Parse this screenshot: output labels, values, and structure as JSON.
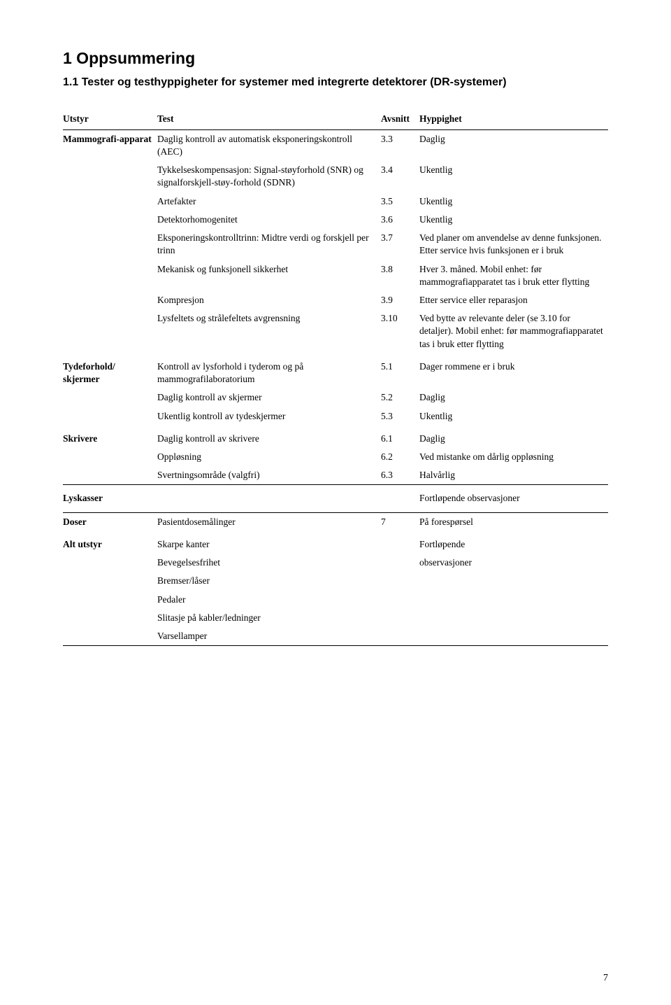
{
  "heading1": "1  Oppsummering",
  "heading2": "1.1  Tester og testhyppigheter for systemer med integrerte detektorer (DR-systemer)",
  "headers": {
    "utstyr": "Utstyr",
    "test": "Test",
    "avsnitt": "Avsnitt",
    "hyppighet": "Hyppighet"
  },
  "rows": [
    {
      "utstyr": "Mammografi-apparat",
      "test": "Daglig kontroll av automatisk eksponeringskontroll (AEC)",
      "avsnitt": "3.3",
      "hypp": "Daglig",
      "top": true,
      "newgroup": true
    },
    {
      "utstyr": "",
      "test": "Tykkelseskompensasjon: Signal-støyforhold (SNR) og signalforskjell-støy-forhold (SDNR)",
      "avsnitt": "3.4",
      "hypp": "Ukentlig"
    },
    {
      "utstyr": "",
      "test": "Artefakter",
      "avsnitt": "3.5",
      "hypp": "Ukentlig"
    },
    {
      "utstyr": "",
      "test": "Detektorhomogenitet",
      "avsnitt": "3.6",
      "hypp": "Ukentlig"
    },
    {
      "utstyr": "",
      "test": "Eksponeringskontrolltrinn: Midtre verdi og forskjell per trinn",
      "avsnitt": "3.7",
      "hypp": "Ved planer om anvendelse av denne funksjonen. Etter service hvis funksjonen er i bruk"
    },
    {
      "utstyr": "",
      "test": "Mekanisk og funksjonell sikkerhet",
      "avsnitt": "3.8",
      "hypp": "Hver 3. måned. Mobil enhet: før mammografiapparatet tas i bruk etter flytting"
    },
    {
      "utstyr": "",
      "test": "Kompresjon",
      "avsnitt": "3.9",
      "hypp": "Etter service eller reparasjon"
    },
    {
      "utstyr": "",
      "test": "Lysfeltets og strålefeltets avgrensning",
      "avsnitt": "3.10",
      "hypp": "Ved bytte av relevante deler (se 3.10 for detaljer). Mobil enhet: før mammografiapparatet tas i bruk etter flytting"
    },
    {
      "utstyr": "Tydeforhold/ skjermer",
      "test": "Kontroll av lysforhold i tyderom og på mammografilaboratorium",
      "avsnitt": "5.1",
      "hypp": "Dager rommene er i bruk",
      "newgroup": true
    },
    {
      "utstyr": "",
      "test": "Daglig kontroll av skjermer",
      "avsnitt": "5.2",
      "hypp": "Daglig"
    },
    {
      "utstyr": "",
      "test": "Ukentlig kontroll av tydeskjermer",
      "avsnitt": "5.3",
      "hypp": "Ukentlig"
    },
    {
      "utstyr": "Skrivere",
      "test": "Daglig kontroll av skrivere",
      "avsnitt": "6.1",
      "hypp": "Daglig",
      "newgroup": true
    },
    {
      "utstyr": "",
      "test": "Oppløsning",
      "avsnitt": "6.2",
      "hypp": "Ved mistanke om dårlig oppløsning"
    },
    {
      "utstyr": "",
      "test": "Svertningsområde (valgfri)",
      "avsnitt": "6.3",
      "hypp": "Halvårlig"
    },
    {
      "utstyr": "Lyskasser",
      "test": "",
      "avsnitt": "",
      "hypp": "Fortløpende observasjoner",
      "lyskasser": true
    },
    {
      "utstyr": "Doser",
      "test": "Pasientdosemålinger",
      "avsnitt": "7",
      "hypp": "På forespørsel",
      "top": true,
      "newgroup": true
    },
    {
      "utstyr": "Alt utstyr",
      "test": "Skarpe kanter",
      "avsnitt": "",
      "hypp": "Fortløpende",
      "newgroup": true
    },
    {
      "utstyr": "",
      "test": "Bevegelsesfrihet",
      "avsnitt": "",
      "hypp": "observasjoner"
    },
    {
      "utstyr": "",
      "test": "Bremser/låser",
      "avsnitt": "",
      "hypp": ""
    },
    {
      "utstyr": "",
      "test": "Pedaler",
      "avsnitt": "",
      "hypp": ""
    },
    {
      "utstyr": "",
      "test": "Slitasje på kabler/ledninger",
      "avsnitt": "",
      "hypp": ""
    },
    {
      "utstyr": "",
      "test": "Varsellamper",
      "avsnitt": "",
      "hypp": "",
      "bot": true
    }
  ],
  "page_number": "7"
}
